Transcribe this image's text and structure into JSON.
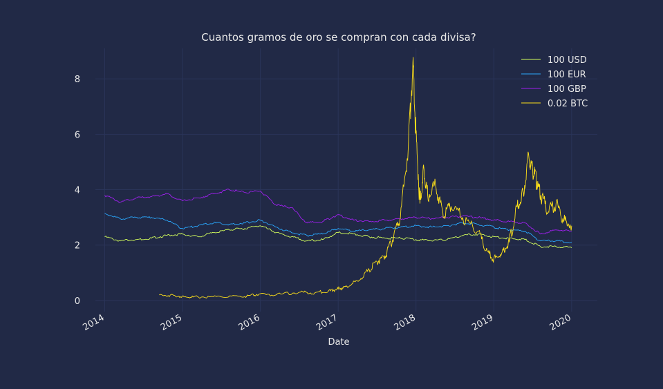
{
  "chart_data": {
    "type": "line",
    "title": "Cuantos gramos de oro se compran con cada divisa?",
    "xlabel": "Date",
    "ylabel": "",
    "xlim": [
      2013.88,
      2020.33
    ],
    "ylim": [
      -0.4,
      9.1
    ],
    "xticks": [
      "2014",
      "2015",
      "2016",
      "2017",
      "2018",
      "2019",
      "2020"
    ],
    "yticks": [
      "0",
      "2",
      "4",
      "6",
      "8"
    ],
    "grid": true,
    "legend_position": "top-right",
    "series": [
      {
        "name": "100 USD",
        "color": "#d4ff5c",
        "x": [
          2014.0,
          2014.2,
          2014.4,
          2014.6,
          2014.8,
          2015.0,
          2015.2,
          2015.4,
          2015.6,
          2015.8,
          2016.0,
          2016.2,
          2016.4,
          2016.6,
          2016.8,
          2017.0,
          2017.2,
          2017.4,
          2017.6,
          2017.8,
          2018.0,
          2018.2,
          2018.4,
          2018.6,
          2018.8,
          2019.0,
          2019.2,
          2019.4,
          2019.6,
          2019.8,
          2020.0
        ],
        "values": [
          2.3,
          2.15,
          2.2,
          2.25,
          2.35,
          2.4,
          2.3,
          2.45,
          2.55,
          2.6,
          2.7,
          2.45,
          2.3,
          2.15,
          2.2,
          2.45,
          2.4,
          2.3,
          2.25,
          2.25,
          2.2,
          2.15,
          2.2,
          2.35,
          2.4,
          2.3,
          2.25,
          2.2,
          1.95,
          1.95,
          1.9
        ]
      },
      {
        "name": "100 EUR",
        "color": "#2aa9ff",
        "x": [
          2014.0,
          2014.2,
          2014.4,
          2014.6,
          2014.8,
          2015.0,
          2015.2,
          2015.4,
          2015.6,
          2015.8,
          2016.0,
          2016.2,
          2016.4,
          2016.6,
          2016.8,
          2017.0,
          2017.2,
          2017.4,
          2017.6,
          2017.8,
          2018.0,
          2018.2,
          2018.4,
          2018.6,
          2018.8,
          2019.0,
          2019.2,
          2019.4,
          2019.6,
          2019.8,
          2020.0
        ],
        "values": [
          3.15,
          2.95,
          3.0,
          3.0,
          2.9,
          2.6,
          2.7,
          2.8,
          2.75,
          2.8,
          2.9,
          2.65,
          2.45,
          2.35,
          2.4,
          2.6,
          2.5,
          2.55,
          2.6,
          2.65,
          2.7,
          2.65,
          2.7,
          2.8,
          2.75,
          2.65,
          2.55,
          2.5,
          2.15,
          2.15,
          2.1
        ]
      },
      {
        "name": "100 GBP",
        "color": "#a020f0",
        "x": [
          2014.0,
          2014.2,
          2014.4,
          2014.6,
          2014.8,
          2015.0,
          2015.2,
          2015.4,
          2015.6,
          2015.8,
          2016.0,
          2016.2,
          2016.4,
          2016.6,
          2016.8,
          2017.0,
          2017.2,
          2017.4,
          2017.6,
          2017.8,
          2018.0,
          2018.2,
          2018.4,
          2018.6,
          2018.8,
          2019.0,
          2019.2,
          2019.4,
          2019.6,
          2019.8,
          2020.0
        ],
        "values": [
          3.8,
          3.55,
          3.7,
          3.75,
          3.85,
          3.6,
          3.7,
          3.85,
          4.0,
          3.9,
          3.95,
          3.45,
          3.35,
          2.8,
          2.85,
          3.1,
          2.9,
          2.85,
          2.9,
          2.95,
          3.0,
          2.95,
          3.0,
          3.05,
          3.0,
          2.9,
          2.85,
          2.8,
          2.4,
          2.55,
          2.5
        ]
      },
      {
        "name": "0.02 BTC",
        "color": "#ffe11a",
        "x": [
          2014.7,
          2014.9,
          2015.05,
          2015.2,
          2015.5,
          2015.8,
          2015.95,
          2016.2,
          2016.5,
          2016.7,
          2016.9,
          2017.0,
          2017.1,
          2017.25,
          2017.4,
          2017.5,
          2017.6,
          2017.7,
          2017.8,
          2017.9,
          2017.96,
          2018.0,
          2018.05,
          2018.1,
          2018.15,
          2018.25,
          2018.35,
          2018.45,
          2018.6,
          2018.8,
          2018.9,
          2019.0,
          2019.1,
          2019.2,
          2019.3,
          2019.38,
          2019.45,
          2019.5,
          2019.55,
          2019.6,
          2019.7,
          2019.8,
          2019.9,
          2020.0
        ],
        "values": [
          0.2,
          0.18,
          0.12,
          0.13,
          0.13,
          0.14,
          0.22,
          0.2,
          0.3,
          0.28,
          0.35,
          0.42,
          0.5,
          0.7,
          1.1,
          1.4,
          1.6,
          2.2,
          3.0,
          5.5,
          8.6,
          6.0,
          3.5,
          4.8,
          3.8,
          4.2,
          3.0,
          3.4,
          3.0,
          2.5,
          1.8,
          1.5,
          1.7,
          2.1,
          3.4,
          3.9,
          5.2,
          4.7,
          4.3,
          3.8,
          3.2,
          3.5,
          2.9,
          2.7
        ]
      }
    ]
  }
}
